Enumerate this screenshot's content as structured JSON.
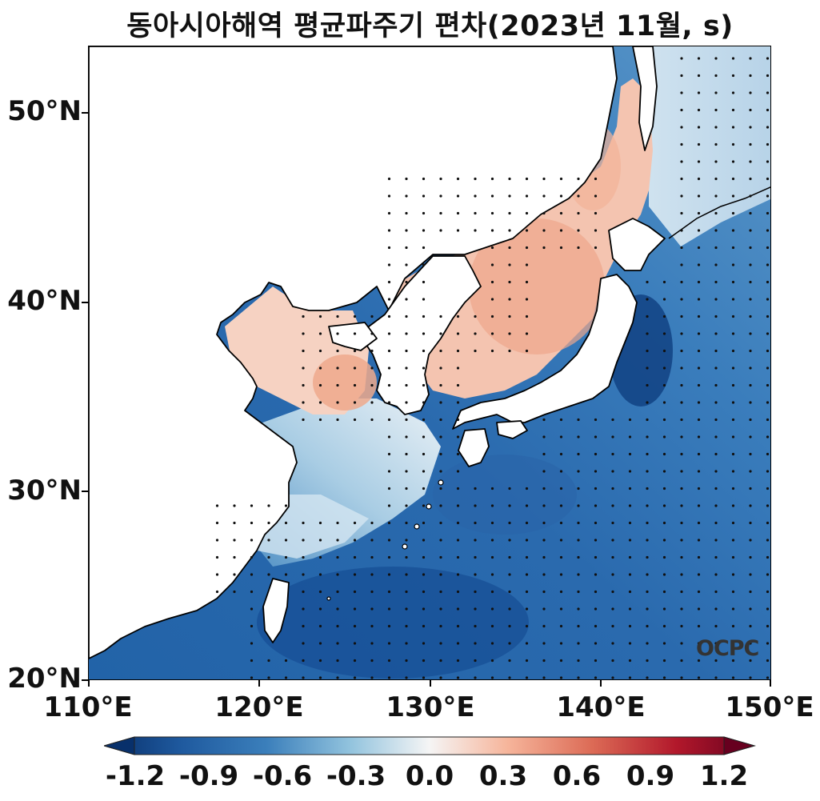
{
  "title": "동아시아해역 평균파주기 편차(2023년 11월, s)",
  "lat_ticks": [
    "50°N",
    "40°N",
    "30°N",
    "20°N"
  ],
  "lon_ticks": [
    "110°E",
    "120°E",
    "130°E",
    "140°E",
    "150°E"
  ],
  "map_extent": {
    "lon": [
      110,
      150
    ],
    "lat": [
      20,
      53.5
    ]
  },
  "colorbar": {
    "ticks": [
      "-1.2",
      "-0.9",
      "-0.6",
      "-0.3",
      "0.0",
      "0.3",
      "0.6",
      "0.9",
      "1.2"
    ],
    "range": [
      -1.2,
      1.2
    ],
    "colormap": "RdBu_r",
    "colors": [
      "#08306b",
      "#2166ac",
      "#4393c3",
      "#92c5de",
      "#f7f7f7",
      "#f4a582",
      "#d6604d",
      "#b2182b",
      "#67001f"
    ]
  },
  "watermark": "OCPC",
  "colors": {
    "negative": "#2f6fb0",
    "positive": "#f3b39a",
    "land": "#ffffff",
    "coast": "#000000"
  }
}
